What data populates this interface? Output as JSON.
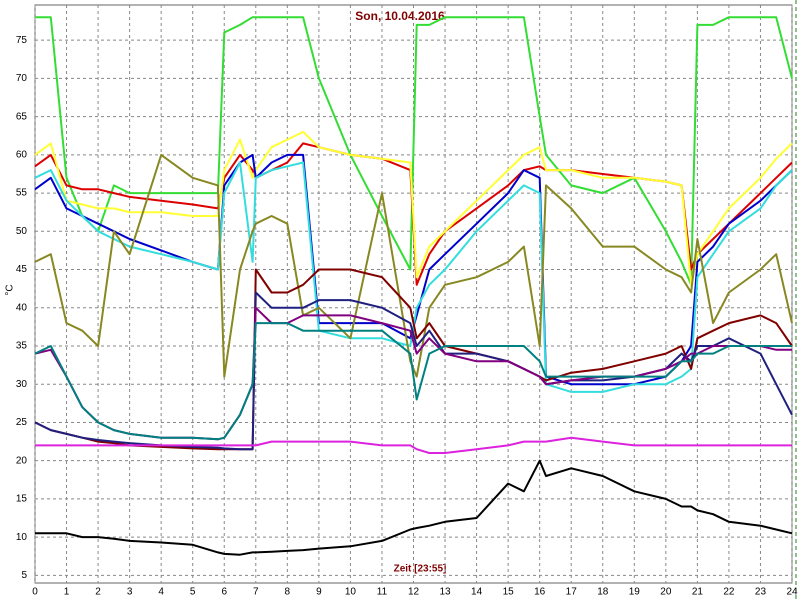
{
  "chart_data": {
    "type": "line",
    "title": "Son, 10.04.2016",
    "x_label": "Zeit [23:55]",
    "y_label": "°C",
    "x": [
      0,
      0.5,
      1,
      1.5,
      2,
      2.5,
      3,
      4,
      5,
      5.8,
      6,
      6.5,
      6.9,
      7,
      7.5,
      8,
      8.5,
      9,
      10,
      11,
      11.9,
      12.1,
      12.5,
      13,
      14,
      15,
      15.5,
      16,
      16.2,
      17,
      18,
      19,
      20,
      20.5,
      20.8,
      21,
      21.5,
      22,
      23,
      23.5,
      24
    ],
    "xlim": [
      0,
      24
    ],
    "xticks": [
      0,
      1,
      2,
      3,
      4,
      5,
      6,
      7,
      8,
      9,
      10,
      11,
      12,
      13,
      14,
      15,
      16,
      17,
      18,
      19,
      20,
      21,
      22,
      23,
      24
    ],
    "ylim": [
      4,
      79.6
    ],
    "yticks": [
      5,
      10,
      15,
      20,
      25,
      30,
      35,
      40,
      45,
      50,
      55,
      60,
      65,
      70,
      75
    ],
    "grid": true,
    "series": [
      {
        "color": "#33dd33",
        "values": [
          78,
          78,
          57,
          52,
          50,
          56,
          55,
          55,
          55,
          55,
          76,
          77,
          78,
          78,
          78,
          78,
          78,
          70,
          60,
          52,
          45,
          77,
          77,
          78,
          78,
          78,
          78,
          65,
          60,
          56,
          55,
          57,
          50,
          46,
          43,
          77,
          77,
          78,
          78,
          78,
          70
        ]
      },
      {
        "color": "#dd0000",
        "values": [
          58.5,
          60,
          56,
          55.5,
          55.5,
          55,
          54.5,
          54,
          53.5,
          53,
          57,
          60,
          58,
          57,
          58,
          59,
          61.5,
          61,
          60,
          59.5,
          58,
          43,
          47,
          50,
          53,
          56,
          58,
          58.5,
          58,
          58,
          57.5,
          57,
          56.5,
          56,
          45,
          47,
          49,
          51,
          55,
          57,
          59
        ]
      },
      {
        "color": "#ffff33",
        "values": [
          60,
          61.5,
          54,
          53.5,
          53,
          53,
          52.5,
          52.5,
          52,
          52,
          58,
          62,
          57,
          58,
          61,
          62,
          63,
          61,
          60,
          59.5,
          59,
          44,
          48,
          50,
          54,
          58,
          60,
          61,
          58,
          58,
          57,
          57,
          56.5,
          56,
          43,
          47,
          50,
          53,
          57,
          59.5,
          61.5
        ]
      },
      {
        "color": "#0000cc",
        "values": [
          55.5,
          57,
          53,
          52,
          51,
          50,
          49,
          47.5,
          46,
          45,
          56,
          59,
          60,
          57,
          59,
          60,
          60,
          38,
          38,
          38,
          36,
          39,
          45,
          47,
          51,
          55,
          58,
          57,
          31,
          30,
          30,
          30,
          31,
          33,
          35,
          46,
          48,
          51,
          54,
          56,
          58
        ]
      },
      {
        "color": "#33dddd",
        "values": [
          57,
          58,
          54,
          52,
          50,
          49,
          48,
          47,
          46,
          45,
          55,
          59,
          46,
          57,
          58,
          58.5,
          59,
          37,
          36,
          36,
          35,
          40,
          43,
          45,
          50,
          54,
          56,
          55,
          30,
          29,
          29,
          30,
          30,
          31,
          32,
          44,
          47,
          50,
          53,
          56,
          58
        ]
      },
      {
        "color": "#888822",
        "values": [
          46,
          47,
          38,
          37,
          35,
          50,
          47,
          60,
          57,
          56,
          31,
          45,
          50,
          51,
          52,
          51,
          39,
          40,
          36,
          55,
          33,
          31,
          40,
          43,
          44,
          46,
          48,
          35,
          56,
          53,
          48,
          48,
          45,
          44,
          42,
          49,
          38,
          42,
          45,
          47,
          38
        ]
      },
      {
        "color": "#800000",
        "values": [
          25,
          24,
          23.5,
          23,
          22.5,
          22.3,
          22,
          21.8,
          21.6,
          21.5,
          21.5,
          21.5,
          21.5,
          45,
          42,
          42,
          43,
          45,
          45,
          44,
          40,
          36,
          38,
          35,
          34,
          33,
          32,
          31,
          30.5,
          31.5,
          32,
          33,
          34,
          35,
          32,
          36,
          37,
          38,
          39,
          38,
          35
        ]
      },
      {
        "color": "#202080",
        "values": [
          25,
          24,
          23.5,
          23,
          22.7,
          22.5,
          22.3,
          22,
          21.8,
          21.7,
          21.6,
          21.5,
          21.5,
          42,
          40,
          40,
          40,
          41,
          41,
          40,
          38,
          35,
          37,
          34,
          34,
          33,
          32,
          31,
          30,
          30.5,
          30.5,
          31,
          32,
          34,
          33,
          35,
          35,
          36,
          34,
          30,
          26
        ]
      },
      {
        "color": "#800080",
        "values": [
          34,
          34.5,
          31,
          27,
          25,
          24,
          23.5,
          23,
          23,
          22.8,
          23,
          26,
          30,
          40,
          38,
          38,
          39,
          39,
          39,
          38,
          37,
          34,
          36,
          34,
          33,
          33,
          32,
          31,
          30,
          30.5,
          31,
          31,
          32,
          33,
          34,
          34,
          35,
          35,
          35,
          34.5,
          34.5
        ]
      },
      {
        "color": "#008080",
        "values": [
          34,
          35,
          31,
          27,
          25,
          24,
          23.5,
          23,
          23,
          22.8,
          23,
          26,
          30,
          38,
          38,
          38,
          37,
          37,
          37,
          37,
          34,
          28,
          34,
          35,
          35,
          35,
          35,
          33,
          31,
          31,
          31,
          31,
          31,
          33,
          33,
          34,
          34,
          35,
          35,
          35,
          35
        ]
      },
      {
        "color": "#dd22dd",
        "values": [
          22,
          22,
          22,
          22,
          22,
          22,
          22,
          22,
          22,
          22,
          22,
          22,
          22,
          22,
          22.5,
          22.5,
          22.5,
          22.5,
          22.5,
          22,
          22,
          21.5,
          21,
          21,
          21.5,
          22,
          22.5,
          22.5,
          22.5,
          23,
          22.5,
          22,
          22,
          22,
          22,
          22,
          22,
          22,
          22,
          22,
          22
        ]
      },
      {
        "color": "#000000",
        "values": [
          10.5,
          10.5,
          10.5,
          10,
          10,
          9.8,
          9.5,
          9.3,
          9,
          8,
          7.8,
          7.7,
          8,
          8,
          8.1,
          8.2,
          8.3,
          8.5,
          8.8,
          9.5,
          11,
          11.2,
          11.5,
          12,
          12.5,
          17,
          16,
          20,
          18,
          19,
          18,
          16,
          15,
          14,
          14,
          13.5,
          13,
          12,
          11.5,
          11,
          10.5
        ]
      }
    ]
  }
}
